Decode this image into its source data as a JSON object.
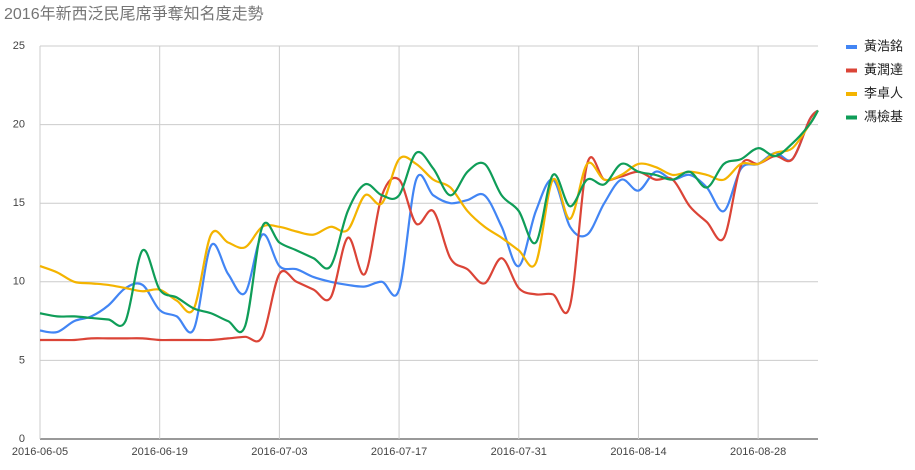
{
  "chart_data": {
    "type": "line",
    "title": "2016年新西泛民尾席爭奪知名度走勢",
    "x": [
      "2016-06-05",
      "2016-06-07",
      "2016-06-09",
      "2016-06-11",
      "2016-06-13",
      "2016-06-15",
      "2016-06-17",
      "2016-06-19",
      "2016-06-21",
      "2016-06-23",
      "2016-06-25",
      "2016-06-27",
      "2016-06-29",
      "2016-07-01",
      "2016-07-03",
      "2016-07-05",
      "2016-07-07",
      "2016-07-09",
      "2016-07-11",
      "2016-07-13",
      "2016-07-15",
      "2016-07-17",
      "2016-07-19",
      "2016-07-21",
      "2016-07-23",
      "2016-07-25",
      "2016-07-27",
      "2016-07-29",
      "2016-07-31",
      "2016-08-02",
      "2016-08-04",
      "2016-08-06",
      "2016-08-08",
      "2016-08-10",
      "2016-08-12",
      "2016-08-14",
      "2016-08-16",
      "2016-08-18",
      "2016-08-20",
      "2016-08-22",
      "2016-08-24",
      "2016-08-26",
      "2016-08-28",
      "2016-08-30",
      "2016-09-01",
      "2016-09-03",
      "2016-09-04"
    ],
    "series": [
      {
        "name": "黃浩銘",
        "color": "#4285f4",
        "values": [
          6.9,
          6.8,
          7.5,
          7.8,
          8.5,
          9.6,
          9.8,
          8.2,
          7.8,
          7.0,
          12.3,
          10.5,
          9.3,
          13.0,
          11.0,
          10.8,
          10.3,
          10.0,
          9.8,
          9.7,
          10.0,
          9.5,
          16.5,
          15.5,
          15.0,
          15.2,
          15.5,
          13.5,
          11.0,
          14.5,
          16.5,
          13.5,
          13.0,
          15.0,
          16.5,
          15.8,
          17.0,
          16.5,
          16.8,
          16.0,
          14.5,
          17.2,
          17.5,
          18.2,
          17.8,
          20.3,
          20.9
        ]
      },
      {
        "name": "黃潤達",
        "color": "#db4437",
        "values": [
          6.3,
          6.3,
          6.3,
          6.4,
          6.4,
          6.4,
          6.4,
          6.3,
          6.3,
          6.3,
          6.3,
          6.4,
          6.5,
          6.5,
          10.5,
          10.0,
          9.5,
          9.0,
          12.8,
          10.5,
          15.5,
          16.5,
          13.7,
          14.5,
          11.5,
          10.8,
          9.9,
          11.5,
          9.6,
          9.2,
          9.2,
          8.5,
          17.5,
          16.5,
          16.7,
          17.0,
          16.5,
          16.5,
          14.8,
          13.8,
          12.8,
          17.4,
          17.5,
          18.0,
          17.8,
          20.3,
          20.9
        ]
      },
      {
        "name": "李卓人",
        "color": "#f4b400",
        "values": [
          11.0,
          10.6,
          10.0,
          9.9,
          9.8,
          9.6,
          9.4,
          9.5,
          8.8,
          8.3,
          13.0,
          12.5,
          12.2,
          13.5,
          13.5,
          13.2,
          13.0,
          13.5,
          13.3,
          15.5,
          15.0,
          17.8,
          17.5,
          16.5,
          16.0,
          14.5,
          13.5,
          12.8,
          12.0,
          11.2,
          16.5,
          14.0,
          17.5,
          16.5,
          16.8,
          17.5,
          17.3,
          16.8,
          17.0,
          16.8,
          16.5,
          17.5,
          17.5,
          18.2,
          18.5,
          20.0,
          20.9
        ]
      },
      {
        "name": "馮檢基",
        "color": "#0f9d58",
        "values": [
          8.0,
          7.8,
          7.8,
          7.7,
          7.6,
          7.5,
          12.0,
          9.5,
          9.0,
          8.3,
          8.0,
          7.5,
          7.2,
          13.5,
          12.5,
          12.0,
          11.5,
          11.0,
          14.5,
          16.2,
          15.5,
          15.5,
          18.2,
          17.2,
          15.5,
          17.0,
          17.5,
          15.5,
          14.5,
          12.5,
          16.8,
          14.8,
          16.5,
          16.2,
          17.5,
          17.0,
          16.8,
          16.5,
          17.0,
          16.0,
          17.5,
          17.8,
          18.5,
          18.0,
          18.8,
          20.0,
          20.9
        ]
      }
    ],
    "xlim": [
      "2016-06-05",
      "2016-09-04"
    ],
    "xticks": [
      "2016-06-05",
      "2016-06-19",
      "2016-07-03",
      "2016-07-17",
      "2016-07-31",
      "2016-08-14",
      "2016-08-28"
    ],
    "ylim": [
      0,
      25
    ],
    "yticks": [
      0,
      5,
      10,
      15,
      20,
      25
    ],
    "grid": true,
    "legend": "right"
  }
}
